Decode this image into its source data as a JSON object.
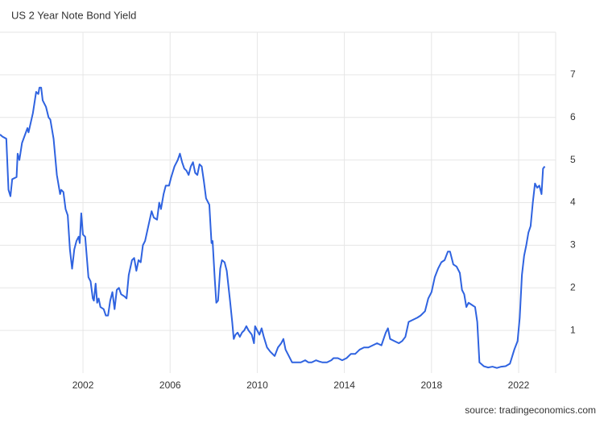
{
  "chart_data": {
    "type": "line",
    "title": "US 2 Year Note Bond Yield",
    "source": "source: tradingeconomics.com",
    "color": "#2f63e0",
    "grid": true,
    "xlim": [
      1998.19,
      2023.7
    ],
    "xticks": [
      2002,
      2006,
      2010,
      2014,
      2018,
      2022
    ],
    "ylim": [
      0,
      8
    ],
    "yticks": [
      1,
      2,
      3,
      4,
      5,
      6,
      7
    ],
    "x": [
      1998.19,
      1998.3,
      1998.48,
      1998.58,
      1998.67,
      1998.75,
      1998.95,
      1999.0,
      1999.08,
      1999.2,
      1999.45,
      1999.5,
      1999.7,
      1999.85,
      1999.95,
      2000.0,
      2000.08,
      2000.15,
      2000.3,
      2000.42,
      2000.5,
      2000.65,
      2000.8,
      2000.95,
      2001.0,
      2001.1,
      2001.2,
      2001.3,
      2001.4,
      2001.5,
      2001.6,
      2001.7,
      2001.8,
      2001.85,
      2001.92,
      2002.0,
      2002.1,
      2002.25,
      2002.35,
      2002.45,
      2002.5,
      2002.58,
      2002.65,
      2002.72,
      2002.8,
      2002.95,
      2003.05,
      2003.15,
      2003.25,
      2003.35,
      2003.45,
      2003.55,
      2003.65,
      2003.75,
      2003.9,
      2004.0,
      2004.1,
      2004.25,
      2004.35,
      2004.45,
      2004.55,
      2004.65,
      2004.75,
      2004.85,
      2005.0,
      2005.15,
      2005.25,
      2005.4,
      2005.5,
      2005.58,
      2005.7,
      2005.8,
      2005.95,
      2006.05,
      2006.2,
      2006.35,
      2006.45,
      2006.55,
      2006.65,
      2006.75,
      2006.85,
      2006.95,
      2007.05,
      2007.15,
      2007.25,
      2007.35,
      2007.45,
      2007.55,
      2007.65,
      2007.8,
      2007.9,
      2007.95,
      2008.05,
      2008.12,
      2008.2,
      2008.3,
      2008.38,
      2008.5,
      2008.6,
      2008.75,
      2008.85,
      2008.92,
      2009.0,
      2009.1,
      2009.2,
      2009.3,
      2009.4,
      2009.5,
      2009.6,
      2009.75,
      2009.85,
      2009.9,
      2010.0,
      2010.1,
      2010.2,
      2010.3,
      2010.45,
      2010.6,
      2010.8,
      2010.95,
      2011.1,
      2011.2,
      2011.3,
      2011.45,
      2011.6,
      2011.8,
      2012.0,
      2012.2,
      2012.35,
      2012.5,
      2012.7,
      2012.85,
      2013.0,
      2013.2,
      2013.4,
      2013.5,
      2013.7,
      2013.9,
      2014.1,
      2014.3,
      2014.5,
      2014.7,
      2014.9,
      2015.1,
      2015.3,
      2015.5,
      2015.7,
      2015.9,
      2016.0,
      2016.1,
      2016.3,
      2016.5,
      2016.65,
      2016.8,
      2016.95,
      2017.15,
      2017.35,
      2017.5,
      2017.7,
      2017.85,
      2018.0,
      2018.15,
      2018.3,
      2018.45,
      2018.6,
      2018.75,
      2018.85,
      2019.0,
      2019.15,
      2019.3,
      2019.4,
      2019.5,
      2019.6,
      2019.7,
      2019.85,
      2020.0,
      2020.1,
      2020.2,
      2020.4,
      2020.6,
      2020.8,
      2021.0,
      2021.2,
      2021.4,
      2021.6,
      2021.8,
      2021.95,
      2022.05,
      2022.15,
      2022.25,
      2022.35,
      2022.45,
      2022.55,
      2022.65,
      2022.75,
      2022.85,
      2022.95,
      2023.05,
      2023.12,
      2023.2
    ],
    "values": [
      5.6,
      5.55,
      5.5,
      4.3,
      4.15,
      4.55,
      4.6,
      5.15,
      5.0,
      5.4,
      5.75,
      5.65,
      6.1,
      6.6,
      6.55,
      6.7,
      6.7,
      6.4,
      6.25,
      6.0,
      5.95,
      5.5,
      4.65,
      4.2,
      4.3,
      4.25,
      3.85,
      3.7,
      2.9,
      2.45,
      2.9,
      3.1,
      3.2,
      3.05,
      3.75,
      3.25,
      3.2,
      2.25,
      2.15,
      1.75,
      1.7,
      2.1,
      1.65,
      1.75,
      1.55,
      1.5,
      1.35,
      1.35,
      1.7,
      1.9,
      1.5,
      1.95,
      2.0,
      1.85,
      1.8,
      1.75,
      2.3,
      2.65,
      2.7,
      2.4,
      2.65,
      2.6,
      3.0,
      3.1,
      3.45,
      3.8,
      3.65,
      3.6,
      4.0,
      3.85,
      4.2,
      4.4,
      4.4,
      4.6,
      4.85,
      5.0,
      5.15,
      4.95,
      4.8,
      4.75,
      4.65,
      4.85,
      4.95,
      4.7,
      4.65,
      4.9,
      4.85,
      4.5,
      4.1,
      3.95,
      3.05,
      3.1,
      2.2,
      1.65,
      1.7,
      2.45,
      2.65,
      2.6,
      2.4,
      1.7,
      1.2,
      0.8,
      0.9,
      0.95,
      0.85,
      0.95,
      1.0,
      1.1,
      1.0,
      0.9,
      0.7,
      1.1,
      1.0,
      0.9,
      1.05,
      0.85,
      0.6,
      0.5,
      0.4,
      0.6,
      0.7,
      0.8,
      0.55,
      0.4,
      0.25,
      0.25,
      0.25,
      0.3,
      0.25,
      0.25,
      0.3,
      0.27,
      0.25,
      0.25,
      0.3,
      0.35,
      0.35,
      0.3,
      0.35,
      0.45,
      0.45,
      0.55,
      0.6,
      0.6,
      0.65,
      0.7,
      0.65,
      0.95,
      1.05,
      0.8,
      0.75,
      0.7,
      0.75,
      0.85,
      1.2,
      1.25,
      1.3,
      1.35,
      1.45,
      1.75,
      1.9,
      2.25,
      2.45,
      2.6,
      2.65,
      2.85,
      2.85,
      2.55,
      2.5,
      2.35,
      1.95,
      1.85,
      1.55,
      1.65,
      1.6,
      1.55,
      1.2,
      0.25,
      0.16,
      0.13,
      0.15,
      0.12,
      0.15,
      0.16,
      0.22,
      0.55,
      0.75,
      1.3,
      2.3,
      2.75,
      3.0,
      3.3,
      3.45,
      4.0,
      4.45,
      4.35,
      4.4,
      4.2,
      4.8,
      4.85
    ]
  }
}
